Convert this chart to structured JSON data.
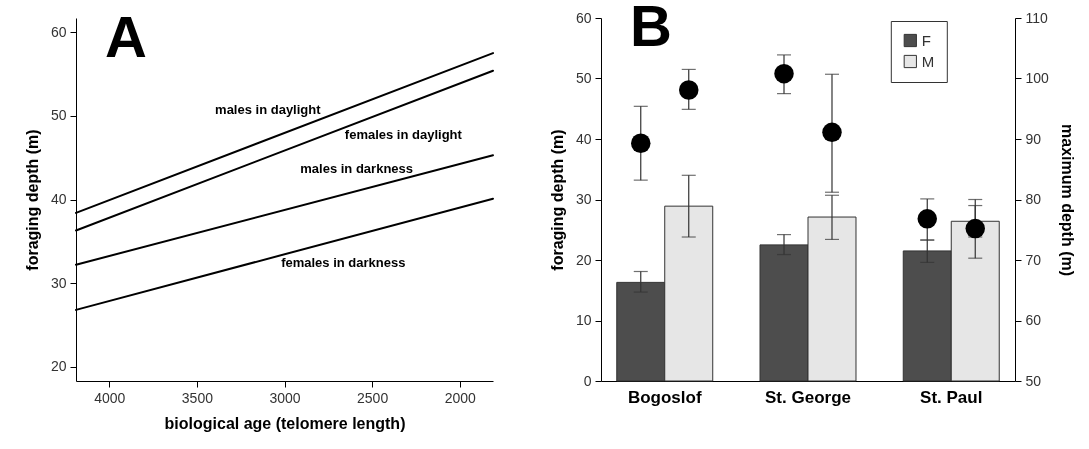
{
  "chart_data": [
    {
      "type": "line",
      "annotations": [
        "A"
      ],
      "xlabel": "biological age (telomere length)",
      "ylabel": "foraging depth (m)",
      "xlim": [
        4190,
        1810
      ],
      "xticks": [
        4000,
        3500,
        3000,
        2500,
        2000
      ],
      "ylim": [
        18.3,
        61.7
      ],
      "yticks": [
        20,
        30,
        40,
        50,
        60
      ],
      "grid": false,
      "marker": "none",
      "line_style": "solid",
      "series": [
        {
          "name": "males in daylight",
          "color": "#000000",
          "x": [
            4190,
            1810
          ],
          "values": [
            38.4,
            57.5
          ]
        },
        {
          "name": "females in daylight",
          "color": "#000000",
          "x": [
            4190,
            1810
          ],
          "values": [
            36.3,
            55.4
          ]
        },
        {
          "name": "males in darkness",
          "color": "#000000",
          "x": [
            4190,
            1810
          ],
          "values": [
            32.2,
            45.3
          ]
        },
        {
          "name": "females in darkness",
          "color": "#000000",
          "x": [
            4190,
            1810
          ],
          "values": [
            26.8,
            40.1
          ]
        }
      ]
    },
    {
      "type": "bar",
      "annotations": [
        "B"
      ],
      "categories": [
        "Bogoslof",
        "St. George",
        "St. Paul"
      ],
      "ylabel": "foraging depth (m)",
      "y2label": "maximum depth (m)",
      "ylim": [
        0,
        60
      ],
      "yticks": [
        0,
        10,
        20,
        30,
        40,
        50,
        60
      ],
      "y2lim": [
        50,
        110
      ],
      "y2ticks": [
        50,
        60,
        70,
        80,
        90,
        100,
        110
      ],
      "grid": false,
      "legend": "top right",
      "marker": "circle",
      "series": [
        {
          "name": "F",
          "color": "#4d4d4d",
          "values": [
            16.3,
            22.5,
            21.5
          ],
          "errors": [
            [
              14.7,
              18.1
            ],
            [
              20.9,
              24.2
            ],
            [
              19.6,
              23.3
            ]
          ]
        },
        {
          "name": "M",
          "color": "#e6e6e6",
          "values": [
            28.9,
            27.1,
            26.4
          ],
          "errors": [
            [
              23.8,
              34.0
            ],
            [
              23.4,
              30.7
            ],
            [
              23.8,
              29.0
            ]
          ]
        },
        {
          "type": "scatter",
          "axis": "y2",
          "color": "#000000",
          "x": [
            "Bogoslof",
            "St. George",
            "St. Paul"
          ],
          "values": [
            89.3,
            100.8,
            76.8
          ],
          "errors": [
            [
              83.2,
              95.4
            ],
            [
              97.5,
              103.9
            ],
            [
              73.3,
              80.1
            ]
          ]
        },
        {
          "type": "scatter",
          "axis": "y2",
          "color": "#000000",
          "x": [
            "Bogoslof",
            "St. George",
            "St. Paul"
          ],
          "values": [
            98.1,
            91.1,
            75.2
          ],
          "errors": [
            [
              94.9,
              101.5
            ],
            [
              81.2,
              100.7
            ],
            [
              70.3,
              80.0
            ]
          ]
        }
      ]
    }
  ]
}
